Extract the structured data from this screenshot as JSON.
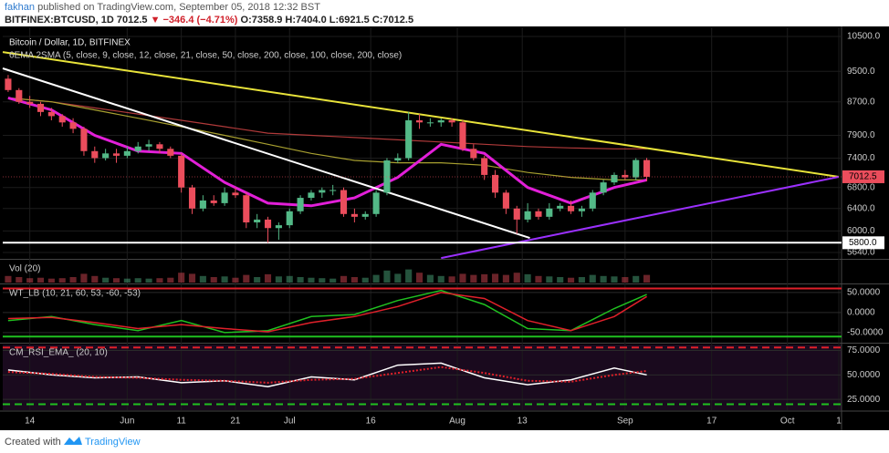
{
  "header": {
    "author": "fakhan",
    "published": "published on TradingView.com, September 05, 2018 12:32 BST",
    "symbol": "BITFINEX:BTCUSD, 1D",
    "last": "7012.5",
    "change": "▼ −346.4 (−4.71%)",
    "ohlc": "O:7358.9 H:7404.0 L:6921.5 C:7012.5"
  },
  "chart_data": [
    {
      "type": "candlestick",
      "title": "Bitcoin / Dollar, 1D, BITFINEX",
      "subtitle": "6EMA 2SMA (5, close, 9, close, 12, close, 21, close, 50, close, 200, close, 100, close, 200, close)",
      "log_scale": true,
      "up_color": "#53b987",
      "down_color": "#eb4d5c",
      "xlim": [
        -5,
        150
      ],
      "ylim": [
        5552,
        10780
      ],
      "xticks": [
        {
          "value": 0,
          "label": "14"
        },
        {
          "value": 18,
          "label": "Jun"
        },
        {
          "value": 28,
          "label": "11"
        },
        {
          "value": 38,
          "label": "21"
        },
        {
          "value": 48,
          "label": "Jul"
        },
        {
          "value": 63,
          "label": "16"
        },
        {
          "value": 79,
          "label": "Aug"
        },
        {
          "value": 91,
          "label": "13"
        },
        {
          "value": 110,
          "label": "Sep"
        },
        {
          "value": 126,
          "label": "17"
        },
        {
          "value": 140,
          "label": "Oct"
        },
        {
          "value": 149.5,
          "label": "1"
        }
      ],
      "yticks": [
        {
          "value": 10500,
          "label": "10500.0"
        },
        {
          "value": 9500,
          "label": "9500.0"
        },
        {
          "value": 8700,
          "label": "8700.0"
        },
        {
          "value": 7900,
          "label": "7900.0"
        },
        {
          "value": 7400,
          "label": "7400.0"
        },
        {
          "value": 6800,
          "label": "6800.0"
        },
        {
          "value": 6400,
          "label": "6400.0"
        },
        {
          "value": 6000,
          "label": "6000.0"
        },
        {
          "value": 5640,
          "label": "5640.0"
        }
      ],
      "x": [
        -4,
        -2,
        0,
        2,
        4,
        6,
        8,
        10,
        12,
        14,
        16,
        18,
        20,
        22,
        24,
        26,
        28,
        30,
        32,
        34,
        36,
        38,
        40,
        42,
        44,
        46,
        48,
        50,
        52,
        54,
        56,
        58,
        60,
        62,
        64,
        66,
        68,
        70,
        72,
        74,
        76,
        78,
        80,
        82,
        84,
        86,
        88,
        90,
        92,
        94,
        96,
        98,
        100,
        102,
        104,
        106,
        108,
        110,
        112,
        114
      ],
      "open": [
        9300,
        9000,
        8700,
        8650,
        8450,
        8350,
        8200,
        8050,
        7550,
        7400,
        7500,
        7450,
        7550,
        7650,
        7700,
        7600,
        7450,
        6800,
        6400,
        6550,
        6500,
        6700,
        6650,
        6150,
        6200,
        6050,
        6100,
        6350,
        6600,
        6700,
        6750,
        6750,
        6300,
        6250,
        6300,
        6700,
        7350,
        7400,
        8250,
        8200,
        8200,
        8250,
        8200,
        7600,
        7400,
        7050,
        6700,
        6400,
        6200,
        6350,
        6250,
        6400,
        6450,
        6350,
        6400,
        6700,
        6900,
        7050,
        7000,
        7358.9
      ],
      "high": [
        9400,
        9050,
        8850,
        8700,
        8550,
        8400,
        8300,
        8100,
        7650,
        7600,
        7600,
        7650,
        7750,
        7800,
        7750,
        7650,
        7500,
        6850,
        6650,
        6650,
        6800,
        6800,
        6700,
        6300,
        6250,
        6150,
        6400,
        6650,
        6750,
        6800,
        6850,
        6800,
        6400,
        6350,
        6750,
        7400,
        7500,
        8450,
        8400,
        8300,
        8300,
        8300,
        8250,
        7700,
        7450,
        7150,
        6750,
        6450,
        6500,
        6400,
        6500,
        6500,
        6550,
        6450,
        6750,
        6950,
        7100,
        7150,
        7400,
        7404
      ],
      "low": [
        8950,
        8650,
        8550,
        8350,
        8250,
        8100,
        7950,
        7450,
        7300,
        7350,
        7300,
        7400,
        7500,
        7550,
        7500,
        7400,
        6700,
        6300,
        6350,
        6450,
        6450,
        6600,
        6050,
        6050,
        5800,
        5850,
        6050,
        6300,
        6550,
        6600,
        6650,
        6250,
        6150,
        6200,
        6250,
        6650,
        7300,
        7350,
        8050,
        8100,
        8100,
        8100,
        7550,
        7350,
        6950,
        6600,
        6300,
        5950,
        6150,
        6200,
        6200,
        6350,
        6300,
        6250,
        6350,
        6650,
        6850,
        6950,
        6950,
        6921.5
      ],
      "close": [
        9000,
        8700,
        8650,
        8450,
        8350,
        8200,
        8050,
        7550,
        7400,
        7500,
        7450,
        7550,
        7650,
        7700,
        7600,
        7450,
        6800,
        6400,
        6550,
        6500,
        6700,
        6650,
        6150,
        6200,
        6050,
        6100,
        6350,
        6600,
        6700,
        6750,
        6750,
        6300,
        6250,
        6300,
        6700,
        7350,
        7400,
        8250,
        8200,
        8200,
        8250,
        8200,
        7600,
        7400,
        7050,
        6700,
        6400,
        6200,
        6350,
        6250,
        6400,
        6450,
        6350,
        6400,
        6700,
        6900,
        7050,
        7000,
        7358.9,
        7012.5
      ],
      "overlay_x": [
        -4,
        4,
        12,
        20,
        28,
        36,
        44,
        52,
        60,
        68,
        76,
        84,
        92,
        100,
        108,
        114
      ],
      "overlays": [
        {
          "color": "#b03a3a",
          "values": [
            8800,
            8700,
            8550,
            8400,
            8250,
            8100,
            7950,
            7900,
            7850,
            7800,
            7750,
            7700,
            7650,
            7620,
            7600,
            7600
          ]
        },
        {
          "color": "#a8a030",
          "values": [
            8800,
            8700,
            8500,
            8300,
            8100,
            7900,
            7700,
            7500,
            7350,
            7300,
            7300,
            7250,
            7100,
            7000,
            6950,
            6950
          ]
        },
        {
          "color": "#e21fd8",
          "values": [
            8800,
            8500,
            7900,
            7550,
            7500,
            6900,
            6500,
            6450,
            6600,
            7000,
            7700,
            7500,
            6800,
            6500,
            6800,
            6950
          ]
        }
      ],
      "trendlines": [
        {
          "color": "#e8e33a",
          "x": [
            -5,
            149.5
          ],
          "values": [
            10040,
            7012.5
          ]
        },
        {
          "color": "#ffffff",
          "x": [
            -5,
            92.4
          ],
          "values": [
            9580,
            5880
          ]
        },
        {
          "color": "#9b30ff",
          "x": [
            76,
            149.5
          ],
          "values": [
            5550,
            7012.5
          ]
        },
        {
          "color": "#ffffff",
          "x": [
            -5,
            150
          ],
          "values": [
            5800,
            5800
          ]
        }
      ],
      "price_labels": [
        {
          "value": 7012.5,
          "label": "7012.5",
          "color": "#eb4d5c"
        },
        {
          "value": 5800,
          "label": "5800.0",
          "color": "#ffffff"
        }
      ]
    },
    {
      "type": "bar",
      "title": "Vol (20)",
      "ylim": [
        0,
        100
      ],
      "values": [
        30,
        25,
        20,
        22,
        18,
        20,
        25,
        40,
        30,
        22,
        20,
        18,
        20,
        18,
        20,
        22,
        45,
        40,
        30,
        25,
        28,
        22,
        35,
        25,
        38,
        28,
        30,
        25,
        22,
        20,
        18,
        30,
        25,
        22,
        35,
        55,
        40,
        60,
        45,
        35,
        30,
        28,
        40,
        35,
        38,
        40,
        35,
        45,
        38,
        30,
        28,
        25,
        22,
        25,
        35,
        30,
        28,
        25,
        30,
        35
      ]
    },
    {
      "type": "line",
      "title": "WT_LB (10, 21, 60, 53, -60, -53)",
      "ylim": [
        -73,
        68
      ],
      "yticks": [
        {
          "value": 50,
          "label": "50.0000"
        },
        {
          "value": 0,
          "label": "0.0000"
        },
        {
          "value": -50,
          "label": "-50.0000"
        }
      ],
      "levels": [
        {
          "value": 60,
          "color": "#e0202a"
        },
        {
          "value": -60,
          "color": "#20c020"
        }
      ],
      "x": [
        -4,
        4,
        12,
        20,
        28,
        36,
        44,
        52,
        60,
        68,
        76,
        84,
        92,
        100,
        108,
        114
      ],
      "series": [
        {
          "color": "#20c020",
          "values": [
            -20,
            -10,
            -30,
            -45,
            -20,
            -50,
            -45,
            -10,
            -5,
            30,
            55,
            20,
            -40,
            -45,
            10,
            45
          ]
        },
        {
          "color": "#e0202a",
          "values": [
            -15,
            -12,
            -25,
            -40,
            -30,
            -40,
            -48,
            -25,
            -10,
            15,
            50,
            35,
            -20,
            -45,
            -10,
            40
          ]
        }
      ]
    },
    {
      "type": "line",
      "title": "CM_RSI_EMA_ (20, 10)",
      "ylim": [
        14,
        81
      ],
      "yticks": [
        {
          "value": 75,
          "label": "75.0000"
        },
        {
          "value": 50,
          "label": "50.0000"
        },
        {
          "value": 25,
          "label": "25.0000"
        }
      ],
      "levels": [
        {
          "value": 78,
          "color": "#e0202a"
        },
        {
          "value": 20,
          "color": "#20c020"
        }
      ],
      "x": [
        -4,
        4,
        12,
        20,
        28,
        36,
        44,
        52,
        60,
        68,
        76,
        84,
        92,
        100,
        108,
        114
      ],
      "series": [
        {
          "color": "#ffffff",
          "values": [
            55,
            50,
            47,
            48,
            42,
            44,
            38,
            48,
            45,
            60,
            62,
            47,
            40,
            45,
            57,
            50
          ]
        },
        {
          "color": "#e0202a",
          "values": [
            53,
            51,
            48,
            47,
            45,
            44,
            42,
            45,
            46,
            52,
            58,
            52,
            44,
            43,
            50,
            54
          ]
        }
      ]
    }
  ],
  "footer": {
    "created": "Created with",
    "brand": "TradingView"
  }
}
